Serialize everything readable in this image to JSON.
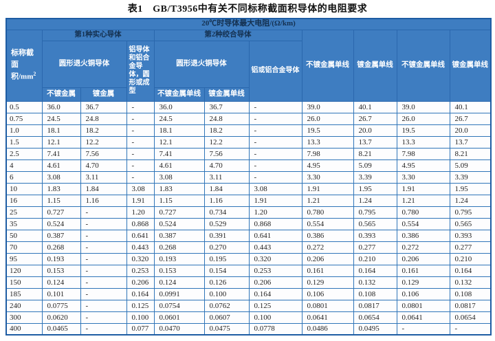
{
  "page": {
    "title": "表1　GB/T3956中有关不同标称截面积导体的电阻要求"
  },
  "colors": {
    "header_background": "#3e7dc1",
    "header_text_light": "#ffffff",
    "header_text_dark": "#14304f",
    "grid_border": "#2e74b8",
    "outer_border": "#1d5ca3",
    "body_background": "#fdfdfe",
    "body_text": "#1f1f1f"
  },
  "table": {
    "top_header": "20℃时导体最大电阻/(Ω/km)",
    "area_header": {
      "line1": "标称截",
      "line2": "面积/mm",
      "sup": "2"
    },
    "group1": "第1种实心导体",
    "group2": "第2种绞合导体",
    "sub_headers": {
      "copper1": "圆形退火铜导体",
      "alu1": "铝导体和铝合金导体，圆形或成型",
      "copper2": "圆形退火铜导体",
      "alu2": "铝或铝合金导体"
    },
    "leaf_headers": [
      "不镀金属",
      "镀金属",
      "不镀金属单线",
      "镀金属单线"
    ],
    "tall_headers": [
      "不镀金属单线",
      "镀金属单线",
      "不镀金属单线",
      "镀金属单线"
    ],
    "rows": [
      [
        "0.5",
        "36.0",
        "36.7",
        "-",
        "36.0",
        "36.7",
        "-",
        "39.0",
        "40.1",
        "39.0",
        "40.1"
      ],
      [
        "0.75",
        "24.5",
        "24.8",
        "-",
        "24.5",
        "24.8",
        "-",
        "26.0",
        "26.7",
        "26.0",
        "26.7"
      ],
      [
        "1.0",
        "18.1",
        "18.2",
        "-",
        "18.1",
        "18.2",
        "-",
        "19.5",
        "20.0",
        "19.5",
        "20.0"
      ],
      [
        "1.5",
        "12.1",
        "12.2",
        "-",
        "12.1",
        "12.2",
        "-",
        "13.3",
        "13.7",
        "13.3",
        "13.7"
      ],
      [
        "2.5",
        "7.41",
        "7.56",
        "-",
        "7.41",
        "7.56",
        "-",
        "7.98",
        "8.21",
        "7.98",
        "8.21"
      ],
      [
        "4",
        "4.61",
        "4.70",
        "-",
        "4.61",
        "4.70",
        "-",
        "4.95",
        "5.09",
        "4.95",
        "5.09"
      ],
      [
        "6",
        "3.08",
        "3.11",
        "-",
        "3.08",
        "3.11",
        "-",
        "3.30",
        "3.39",
        "3.30",
        "3.39"
      ],
      [
        "10",
        "1.83",
        "1.84",
        "3.08",
        "1.83",
        "1.84",
        "3.08",
        "1.91",
        "1.95",
        "1.91",
        "1.95"
      ],
      [
        "16",
        "1.15",
        "1.16",
        "1.91",
        "1.15",
        "1.16",
        "1.91",
        "1.21",
        "1.24",
        "1.21",
        "1.24"
      ],
      [
        "25",
        "0.727",
        "-",
        "1.20",
        "0.727",
        "0.734",
        "1.20",
        "0.780",
        "0.795",
        "0.780",
        "0.795"
      ],
      [
        "35",
        "0.524",
        "-",
        "0.868",
        "0.524",
        "0.529",
        "0.868",
        "0.554",
        "0.565",
        "0.554",
        "0.565"
      ],
      [
        "50",
        "0.387",
        "-",
        "0.641",
        "0.387",
        "0.391",
        "0.641",
        "0.386",
        "0.393",
        "0.386",
        "0.393"
      ],
      [
        "70",
        "0.268",
        "-",
        "0.443",
        "0.268",
        "0.270",
        "0.443",
        "0.272",
        "0.277",
        "0.272",
        "0.277"
      ],
      [
        "95",
        "0.193",
        "-",
        "0.320",
        "0.193",
        "0.195",
        "0.320",
        "0.206",
        "0.210",
        "0.206",
        "0.210"
      ],
      [
        "120",
        "0.153",
        "-",
        "0.253",
        "0.153",
        "0.154",
        "0.253",
        "0.161",
        "0.164",
        "0.161",
        "0.164"
      ],
      [
        "150",
        "0.124",
        "-",
        "0.206",
        "0.124",
        "0.126",
        "0.206",
        "0.129",
        "0.132",
        "0.129",
        "0.132"
      ],
      [
        "185",
        "0.101",
        "-",
        "0.164",
        "0.0991",
        "0.100",
        "0.164",
        "0.106",
        "0.108",
        "0.106",
        "0.108"
      ],
      [
        "240",
        "0.0775",
        "-",
        "0.125",
        "0.0754",
        "0.0762",
        "0.125",
        "0.0801",
        "0.0817",
        "0.0801",
        "0.0817"
      ],
      [
        "300",
        "0.0620",
        "-",
        "0.100",
        "0.0601",
        "0.0607",
        "0.100",
        "0.0641",
        "0.0654",
        "0.0641",
        "0.0654"
      ],
      [
        "400",
        "0.0465",
        "-",
        "0.077",
        "0.0470",
        "0.0475",
        "0.0778",
        "0.0486",
        "0.0495",
        "-",
        "-"
      ]
    ]
  }
}
